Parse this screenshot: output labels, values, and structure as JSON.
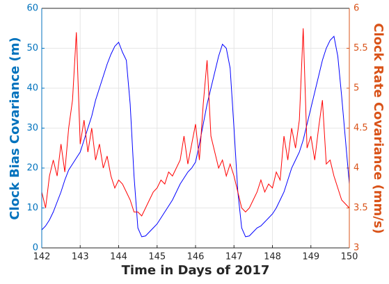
{
  "chart_data": {
    "type": "line",
    "xlabel": "Time in Days of 2017",
    "ylabel": "Clock Bias Covariance (m)",
    "y2label": "Clock Rate Covariance (mm/s)",
    "x": [
      142.0,
      142.1,
      142.2,
      142.3,
      142.4,
      142.5,
      142.6,
      142.7,
      142.8,
      142.9,
      143.0,
      143.1,
      143.2,
      143.3,
      143.4,
      143.5,
      143.6,
      143.7,
      143.8,
      143.9,
      144.0,
      144.1,
      144.2,
      144.3,
      144.4,
      144.5,
      144.6,
      144.7,
      144.8,
      144.9,
      145.0,
      145.1,
      145.2,
      145.3,
      145.4,
      145.5,
      145.6,
      145.7,
      145.8,
      145.9,
      146.0,
      146.1,
      146.2,
      146.3,
      146.4,
      146.5,
      146.6,
      146.7,
      146.8,
      146.9,
      147.0,
      147.1,
      147.2,
      147.3,
      147.4,
      147.5,
      147.6,
      147.7,
      147.8,
      147.9,
      148.0,
      148.1,
      148.2,
      148.3,
      148.4,
      148.5,
      148.6,
      148.7,
      148.8,
      148.9,
      149.0,
      149.1,
      149.2,
      149.3,
      149.4,
      149.5,
      149.6,
      149.7,
      149.8,
      149.9,
      150.0
    ],
    "series": [
      {
        "color": "#0000ff",
        "axis": "y",
        "values": [
          4.5,
          5.5,
          7,
          9,
          11.5,
          14,
          17,
          19.5,
          21,
          22.5,
          24,
          27,
          30,
          33,
          37,
          40,
          43,
          46,
          48.5,
          50.5,
          51.5,
          49,
          47,
          36,
          18,
          5,
          2.8,
          3,
          4,
          5,
          6,
          7.5,
          9,
          10.5,
          12,
          14,
          16,
          17.5,
          19,
          20,
          21.5,
          26,
          31,
          36,
          40,
          44,
          48,
          51,
          50,
          45,
          30,
          14,
          5,
          2.8,
          3,
          4,
          5,
          5.5,
          6.5,
          7.5,
          8.5,
          10,
          12,
          14,
          17,
          20,
          22,
          24,
          27,
          31,
          35,
          39,
          43,
          47,
          50,
          52,
          53,
          48,
          38,
          27,
          16
        ]
      },
      {
        "color": "#ff0000",
        "axis": "y2",
        "values": [
          3.7,
          3.5,
          3.9,
          4.1,
          3.9,
          4.3,
          3.95,
          4.5,
          4.85,
          5.7,
          4.3,
          4.6,
          4.2,
          4.5,
          4.1,
          4.3,
          4.0,
          4.15,
          3.9,
          3.75,
          3.85,
          3.8,
          3.7,
          3.6,
          3.45,
          3.45,
          3.4,
          3.5,
          3.6,
          3.7,
          3.75,
          3.85,
          3.8,
          3.95,
          3.9,
          4.0,
          4.1,
          4.4,
          4.05,
          4.3,
          4.55,
          4.1,
          4.8,
          5.35,
          4.4,
          4.2,
          4.0,
          4.1,
          3.9,
          4.05,
          3.9,
          3.7,
          3.5,
          3.45,
          3.5,
          3.6,
          3.7,
          3.85,
          3.7,
          3.8,
          3.75,
          3.95,
          3.85,
          4.4,
          4.1,
          4.5,
          4.25,
          4.6,
          5.75,
          4.25,
          4.4,
          4.1,
          4.5,
          4.85,
          4.05,
          4.1,
          3.9,
          3.75,
          3.6,
          3.55,
          3.5
        ]
      }
    ],
    "xlim": [
      142,
      150
    ],
    "xticks": [
      142,
      143,
      144,
      145,
      146,
      147,
      148,
      149,
      150
    ],
    "ylim": [
      0,
      60
    ],
    "yticks": [
      0,
      10,
      20,
      30,
      40,
      50,
      60
    ],
    "y2lim": [
      3,
      6
    ],
    "y2ticks": [
      3,
      3.5,
      4,
      4.5,
      5,
      5.5,
      6
    ],
    "y_axis_color": "#0072bd",
    "y2_axis_color": "#d95319",
    "grid": true
  }
}
